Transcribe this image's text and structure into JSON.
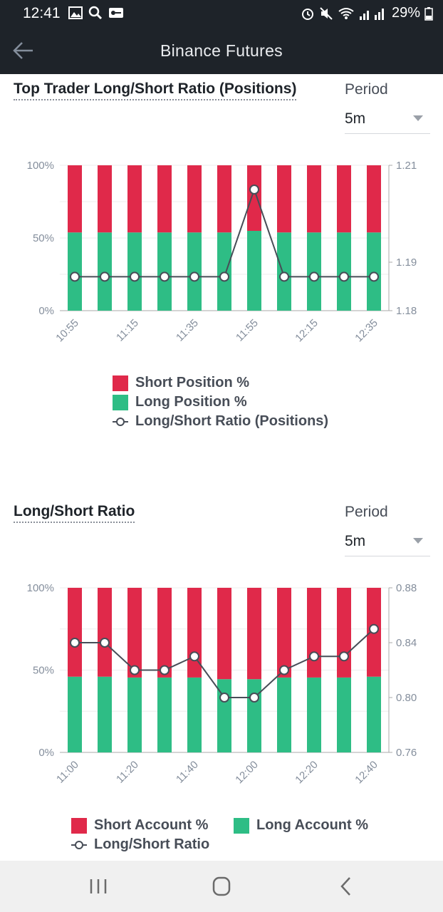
{
  "status_bar": {
    "time": "12:41",
    "battery": "29%",
    "icons": [
      "gallery-icon",
      "search-icon",
      "key-icon",
      "alarm-icon",
      "mute-icon",
      "wifi-icon",
      "signal-icon",
      "battery-icon"
    ]
  },
  "app_bar": {
    "title": "Binance Futures"
  },
  "section1": {
    "title": "Top Trader Long/Short Ratio (Positions)",
    "period_label": "Period",
    "period_value": "5m"
  },
  "section2": {
    "title": "Long/Short Ratio",
    "period_label": "Period",
    "period_value": "5m"
  },
  "colors": {
    "short": "#e0294a",
    "long": "#2ebd85",
    "line": "#474d57",
    "dark": "#1e2329"
  },
  "chart_data": [
    {
      "type": "bar",
      "stacked": true,
      "categories": [
        "10:55",
        "11:05",
        "11:15",
        "11:25",
        "11:35",
        "11:45",
        "11:55",
        "12:05",
        "12:15",
        "12:25",
        "12:35"
      ],
      "x_tick_labels": [
        "10:55",
        "11:15",
        "11:35",
        "11:55",
        "12:15",
        "12:35"
      ],
      "series": [
        {
          "name": "Short Position %",
          "values": [
            46.2,
            46.2,
            46.2,
            46.2,
            46.2,
            46.2,
            45.1,
            46.2,
            46.2,
            46.2,
            46.2
          ]
        },
        {
          "name": "Long Position %",
          "values": [
            53.8,
            53.8,
            53.8,
            53.8,
            53.8,
            53.8,
            54.9,
            53.8,
            53.8,
            53.8,
            53.8
          ]
        }
      ],
      "line_series": {
        "name": "Long/Short Ratio (Positions)",
        "values": [
          1.187,
          1.187,
          1.187,
          1.187,
          1.187,
          1.187,
          1.205,
          1.187,
          1.187,
          1.187,
          1.187
        ]
      },
      "y_left_ticks": [
        "100%",
        "50%",
        "0%"
      ],
      "y_right_ticks": [
        "1.21",
        "1.19",
        "1.18"
      ],
      "legend": [
        "Short Position %",
        "Long Position %",
        "Long/Short Ratio (Positions)"
      ]
    },
    {
      "type": "bar",
      "stacked": true,
      "categories": [
        "11:00",
        "11:10",
        "11:20",
        "11:30",
        "11:40",
        "11:50",
        "12:00",
        "12:10",
        "12:20",
        "12:30",
        "12:40"
      ],
      "x_tick_labels": [
        "11:00",
        "11:20",
        "11:40",
        "12:00",
        "12:20",
        "12:40"
      ],
      "series": [
        {
          "name": "Short Account %",
          "values": [
            54,
            54,
            54.5,
            54.5,
            54.5,
            55.5,
            55.5,
            54.5,
            54.5,
            54.5,
            54
          ]
        },
        {
          "name": "Long Account %",
          "values": [
            46,
            46,
            45.5,
            45.5,
            45.5,
            44.5,
            44.5,
            45.5,
            45.5,
            45.5,
            46
          ]
        }
      ],
      "line_series": {
        "name": "Long/Short Ratio",
        "values": [
          0.84,
          0.84,
          0.82,
          0.82,
          0.83,
          0.8,
          0.8,
          0.82,
          0.83,
          0.83,
          0.85
        ]
      },
      "y_left_ticks": [
        "100%",
        "50%",
        "0%"
      ],
      "y_right_ticks": [
        "0.88",
        "0.84",
        "0.80",
        "0.76"
      ],
      "legend": [
        "Short Account %",
        "Long Account %",
        "Long/Short Ratio"
      ]
    }
  ],
  "nav_bar": {
    "buttons": [
      "recent-apps",
      "home",
      "back"
    ]
  }
}
